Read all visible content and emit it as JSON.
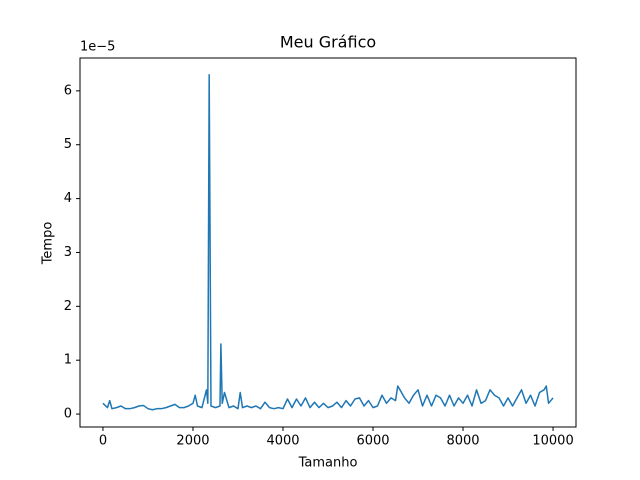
{
  "chart_data": {
    "type": "line",
    "title": "Meu Gráfico",
    "x_label": "Tamanho",
    "y_label": "Tempo",
    "y_offset_text": "1e−5",
    "x": [
      0,
      100,
      150,
      200,
      300,
      400,
      500,
      600,
      700,
      800,
      900,
      1000,
      1100,
      1200,
      1300,
      1400,
      1500,
      1600,
      1700,
      1800,
      1900,
      2000,
      2050,
      2100,
      2200,
      2300,
      2330,
      2360,
      2400,
      2500,
      2600,
      2620,
      2650,
      2700,
      2800,
      2900,
      3000,
      3050,
      3100,
      3200,
      3300,
      3400,
      3500,
      3600,
      3700,
      3800,
      3900,
      4000,
      4100,
      4200,
      4300,
      4400,
      4500,
      4600,
      4700,
      4800,
      4900,
      5000,
      5100,
      5200,
      5300,
      5400,
      5500,
      5600,
      5700,
      5800,
      5900,
      6000,
      6100,
      6200,
      6300,
      6400,
      6500,
      6550,
      6600,
      6700,
      6800,
      6900,
      7000,
      7100,
      7200,
      7300,
      7400,
      7500,
      7600,
      7700,
      7800,
      7900,
      8000,
      8100,
      8200,
      8300,
      8400,
      8500,
      8600,
      8700,
      8800,
      8900,
      9000,
      9100,
      9200,
      9300,
      9400,
      9500,
      9600,
      9700,
      9800,
      9850,
      9900,
      10000
    ],
    "series": [
      {
        "color": "#1f77b4",
        "values": [
          0.2,
          0.12,
          0.25,
          0.1,
          0.12,
          0.15,
          0.1,
          0.1,
          0.12,
          0.15,
          0.16,
          0.1,
          0.08,
          0.1,
          0.1,
          0.12,
          0.15,
          0.18,
          0.12,
          0.12,
          0.15,
          0.2,
          0.35,
          0.15,
          0.12,
          0.45,
          0.2,
          6.3,
          0.15,
          0.12,
          0.15,
          1.3,
          0.2,
          0.4,
          0.12,
          0.15,
          0.1,
          0.4,
          0.12,
          0.15,
          0.12,
          0.15,
          0.1,
          0.22,
          0.12,
          0.1,
          0.12,
          0.1,
          0.28,
          0.12,
          0.28,
          0.15,
          0.3,
          0.12,
          0.22,
          0.12,
          0.2,
          0.12,
          0.15,
          0.22,
          0.12,
          0.25,
          0.15,
          0.28,
          0.3,
          0.15,
          0.25,
          0.12,
          0.15,
          0.35,
          0.2,
          0.3,
          0.25,
          0.52,
          0.45,
          0.3,
          0.2,
          0.35,
          0.45,
          0.15,
          0.35,
          0.15,
          0.35,
          0.3,
          0.15,
          0.35,
          0.15,
          0.3,
          0.2,
          0.35,
          0.15,
          0.45,
          0.2,
          0.25,
          0.45,
          0.35,
          0.3,
          0.15,
          0.3,
          0.15,
          0.3,
          0.45,
          0.2,
          0.35,
          0.15,
          0.4,
          0.45,
          0.52,
          0.2,
          0.3
        ]
      }
    ],
    "xlim": [
      -510,
      10510
    ],
    "ylim": [
      -0.24,
      6.61
    ],
    "xticks": [
      0,
      2000,
      4000,
      6000,
      8000,
      10000
    ],
    "yticks": [
      0,
      1,
      2,
      3,
      4,
      5,
      6
    ]
  }
}
